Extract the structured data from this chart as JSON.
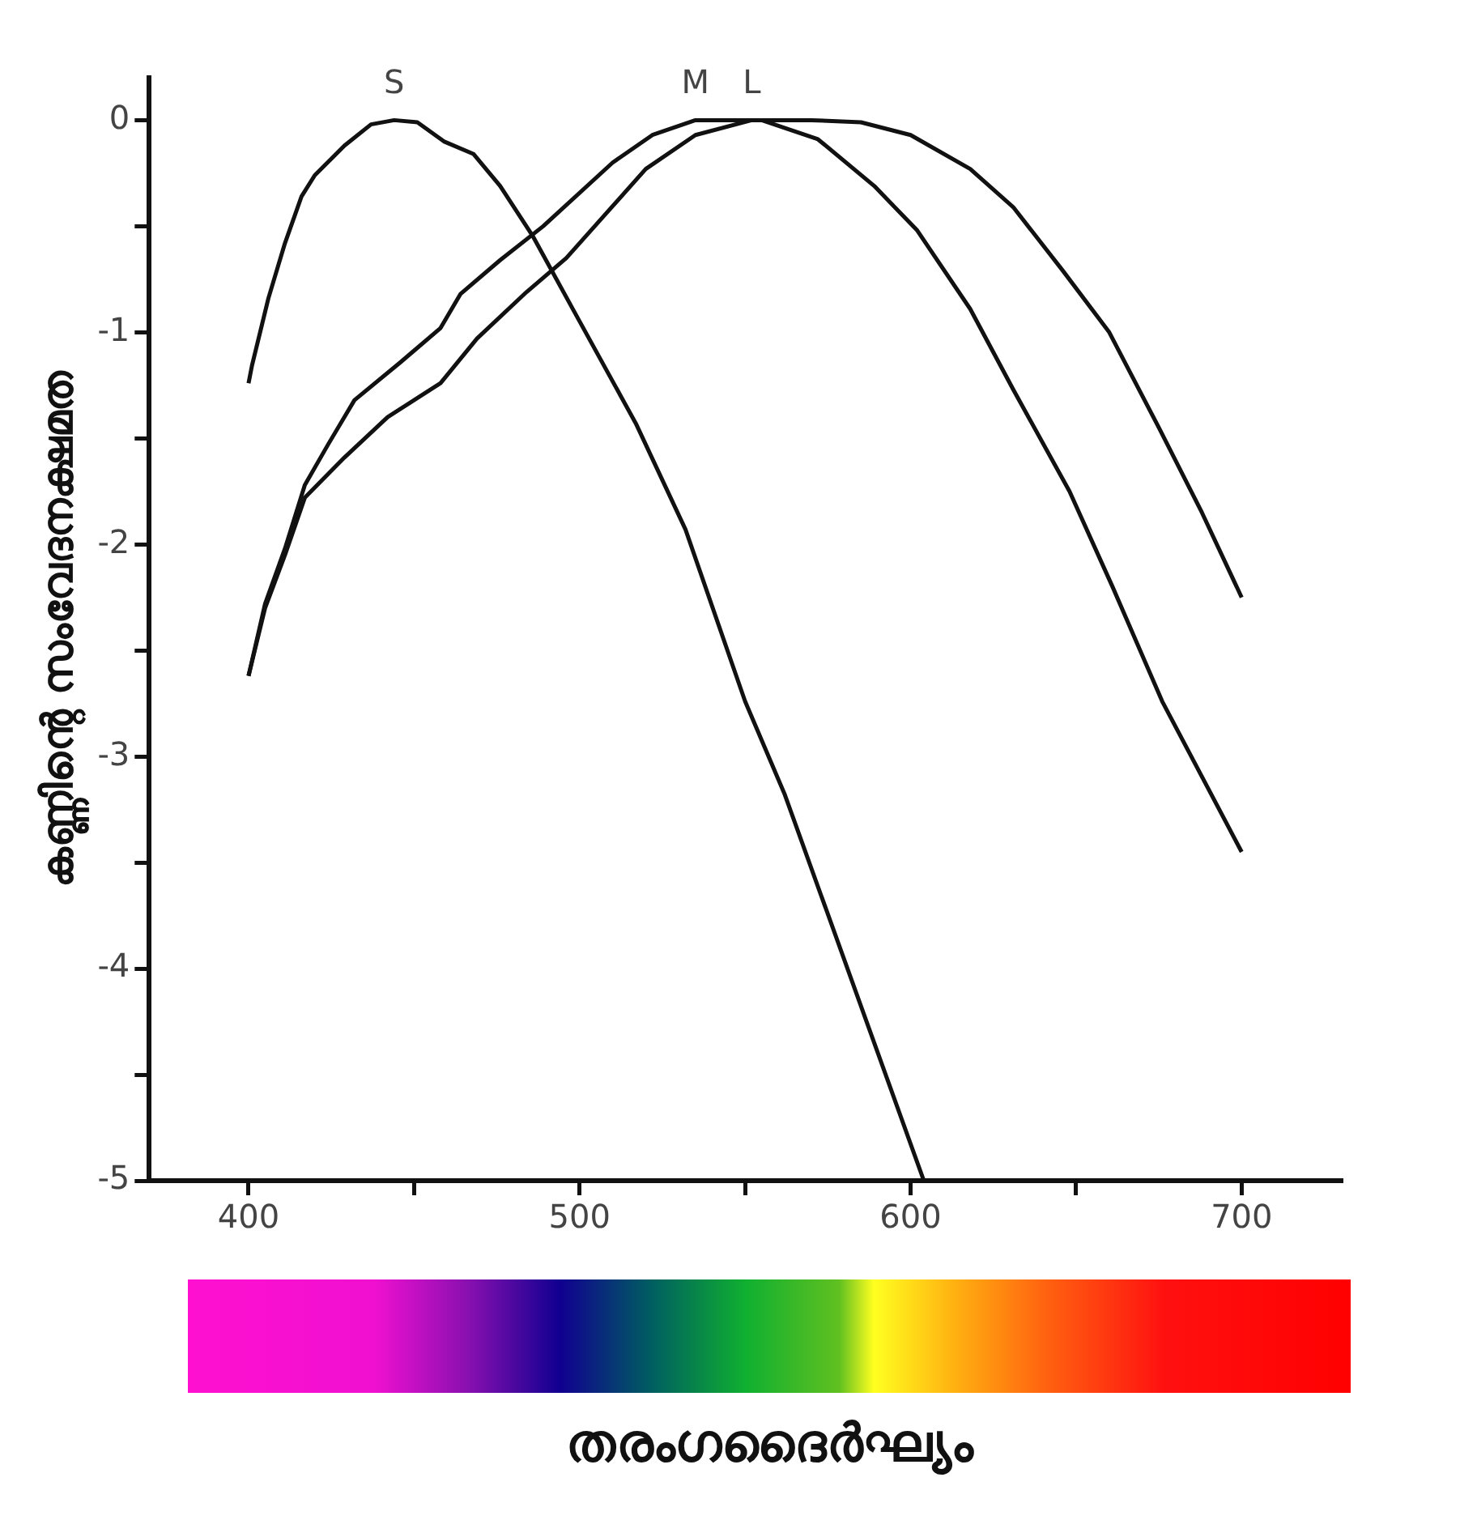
{
  "chart_data": {
    "type": "line",
    "xlabel": "തരംഗദൈർഘ്യം",
    "ylabel": "കണ്ണിന്റെ സംവേദനക്ഷമത",
    "xlim": [
      370,
      730
    ],
    "ylim": [
      -5,
      0.2
    ],
    "xticks": [
      400,
      {
        "value": 450,
        "label": null
      },
      500,
      {
        "value": 550,
        "label": null
      },
      600,
      {
        "value": 650,
        "label": null
      },
      700
    ],
    "yticks": [
      0,
      {
        "value": -0.5,
        "label": null
      },
      -1,
      {
        "value": -1.5,
        "label": null
      },
      -2,
      {
        "value": -2.5,
        "label": null
      },
      -3,
      {
        "value": -3.5,
        "label": null
      },
      -4,
      {
        "value": -4.5,
        "label": null
      },
      -5
    ],
    "legend": false,
    "marker": "none",
    "line_style": "solid",
    "series": [
      {
        "name": "S",
        "color": "#111111",
        "x": [
          400,
          401,
          406,
          411,
          416,
          420,
          429,
          437,
          444,
          451,
          459,
          468,
          476,
          486,
          499,
          517,
          532,
          550,
          562,
          604
        ],
        "values": [
          -1.24,
          -1.16,
          -0.84,
          -0.58,
          -0.36,
          -0.26,
          -0.12,
          -0.02,
          0,
          -0.01,
          -0.1,
          -0.16,
          -0.31,
          -0.55,
          -0.92,
          -1.43,
          -1.93,
          -2.74,
          -3.18,
          -5
        ]
      },
      {
        "name": "M",
        "color": "#111111",
        "x": [
          400,
          405,
          411,
          417,
          424,
          432,
          446,
          458,
          464,
          476,
          489,
          510,
          522,
          535,
          545,
          555,
          572,
          589,
          602,
          618,
          631,
          648,
          661,
          676,
          700
        ],
        "values": [
          -2.62,
          -2.28,
          -2.02,
          -1.72,
          -1.53,
          -1.32,
          -1.14,
          -0.98,
          -0.82,
          -0.66,
          -0.5,
          -0.2,
          -0.07,
          0,
          0,
          0,
          -0.09,
          -0.31,
          -0.52,
          -0.89,
          -1.27,
          -1.75,
          -2.2,
          -2.74,
          -3.45
        ]
      },
      {
        "name": "L",
        "color": "#111111",
        "x": [
          400,
          405,
          411,
          417,
          429,
          442,
          458,
          469,
          484,
          496,
          508,
          520,
          535,
          552,
          570,
          585,
          600,
          618,
          631,
          646,
          660,
          675,
          688,
          700
        ],
        "values": [
          -2.62,
          -2.3,
          -2.05,
          -1.78,
          -1.59,
          -1.4,
          -1.24,
          -1.03,
          -0.81,
          -0.65,
          -0.44,
          -0.23,
          -0.07,
          0,
          0,
          -0.01,
          -0.07,
          -0.23,
          -0.41,
          -0.71,
          -1,
          -1.45,
          -1.85,
          -2.25
        ]
      }
    ]
  }
}
